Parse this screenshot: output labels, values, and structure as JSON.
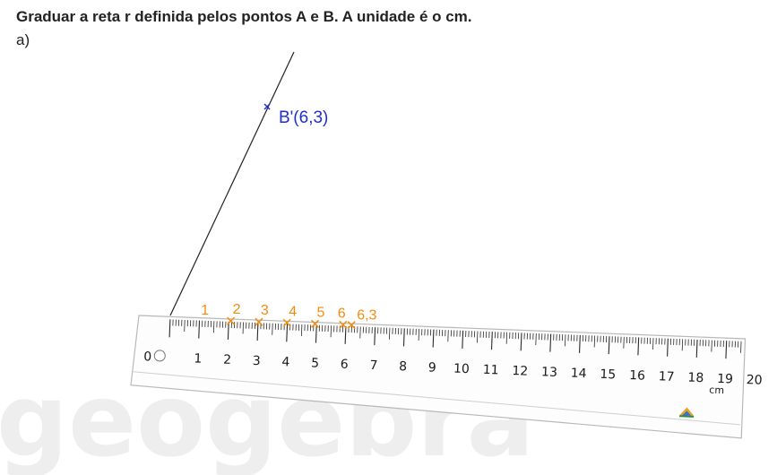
{
  "instruction": "Graduar a reta r definida pelos pontos A e B. A unidade é o cm.",
  "part_label": "a)",
  "watermark": "geogebra",
  "point_b": {
    "label": "B'(6,3)",
    "color": "#1f2fd0"
  },
  "graduation_color": "#f28c0f",
  "graduations": [
    {
      "label": "1",
      "value": 1
    },
    {
      "label": "2",
      "value": 2
    },
    {
      "label": "3",
      "value": 3
    },
    {
      "label": "4",
      "value": 4
    },
    {
      "label": "5",
      "value": 5
    },
    {
      "label": "6",
      "value": 6
    },
    {
      "label": "6,3",
      "value": 6.3
    }
  ],
  "ruler": {
    "zero_label": "0",
    "unit": "cm",
    "numbers": [
      "1",
      "2",
      "3",
      "4",
      "5",
      "6",
      "7",
      "8",
      "9",
      "10",
      "11",
      "12",
      "13",
      "14",
      "15",
      "16",
      "17",
      "18",
      "19",
      "20"
    ],
    "logo": "geogebra-ruler-logo-icon"
  }
}
